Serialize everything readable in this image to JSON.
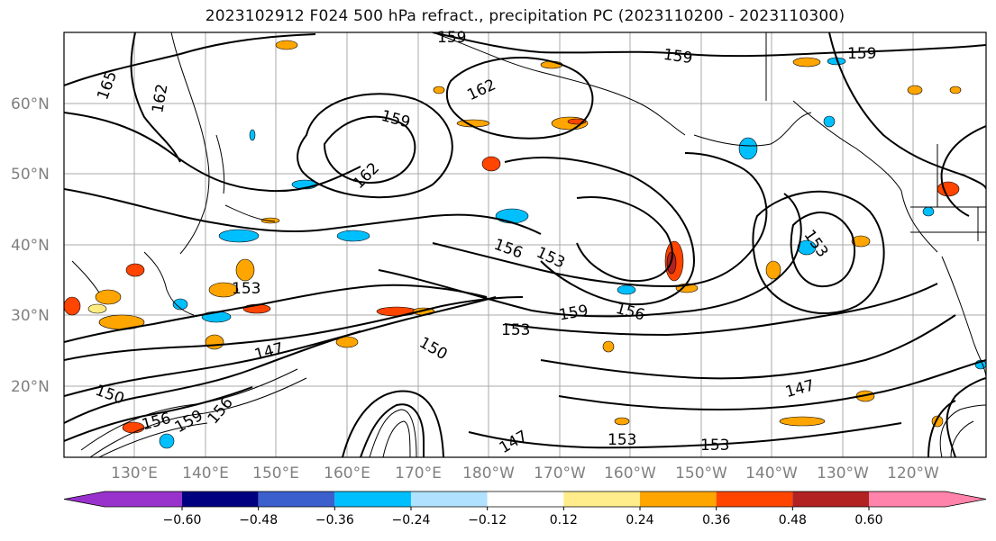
{
  "title": "2023102912 F024 500 hPa refract., precipitation PC (2023110200 - 2023110300)",
  "map": {
    "lat_labels": [
      "60°N",
      "50°N",
      "40°N",
      "30°N",
      "20°N"
    ],
    "lon_labels": [
      "130°E",
      "140°E",
      "150°E",
      "160°E",
      "170°E",
      "180°W",
      "170°W",
      "160°W",
      "150°W",
      "140°W",
      "130°W",
      "120°W"
    ],
    "contour_labels": [
      "159",
      "165",
      "162",
      "162",
      "159",
      "162",
      "159",
      "159",
      "156",
      "153",
      "153",
      "159",
      "156",
      "153",
      "150",
      "147",
      "150",
      "156",
      "159",
      "147",
      "153",
      "153",
      "147",
      "156",
      "153"
    ],
    "shading_colors": {
      "positive": [
        "#ffeb80",
        "#ffa500",
        "#ff4500"
      ],
      "negative": [
        "#b0e0ff",
        "#00bfff",
        "#3a5ecc"
      ]
    }
  },
  "colorbar": {
    "colors": [
      "#9932cc",
      "#000080",
      "#3b5fcd",
      "#00bfff",
      "#b0e2ff",
      "#ffffff",
      "#ffec8b",
      "#ffa500",
      "#ff4500",
      "#b22222",
      "#ff83aa"
    ],
    "tick_labels": [
      "−0.60",
      "−0.48",
      "−0.36",
      "−0.24",
      "−0.12",
      "0.12",
      "0.24",
      "0.36",
      "0.48",
      "0.60"
    ]
  }
}
